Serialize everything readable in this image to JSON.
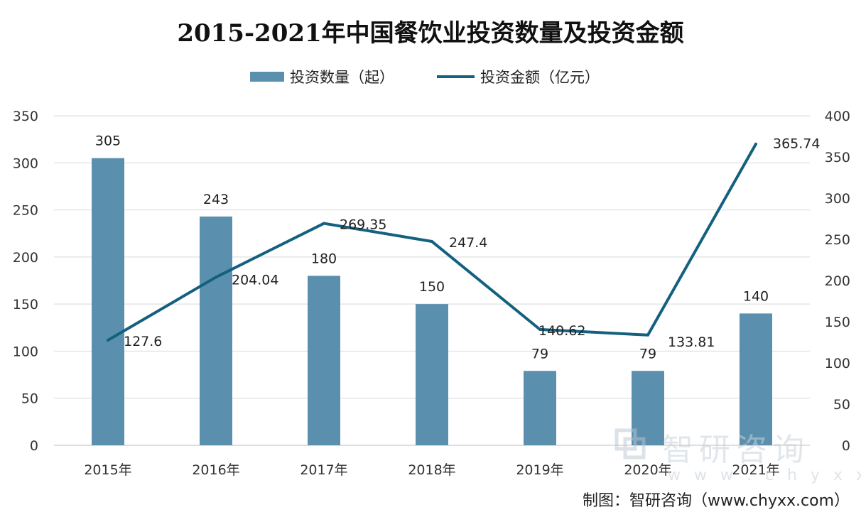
{
  "colors": {
    "bar": "#5b8fae",
    "line": "#13607f",
    "grid": "#d9d9d9",
    "watermark": "#c9d3dc"
  },
  "watermark": {
    "logo_icon": "chyxx-logo-icon",
    "name": "智研咨询",
    "url": "w w w . c h y x x . c o m"
  },
  "source": "制图：智研咨询（www.chyxx.com）",
  "chart_data": {
    "type": "bar",
    "title": "2015-2021年中国餐饮业投资数量及投资金额",
    "categories": [
      "2015年",
      "2016年",
      "2017年",
      "2018年",
      "2019年",
      "2020年",
      "2021年"
    ],
    "series": [
      {
        "name": "投资数量（起）",
        "type": "bar",
        "axis": "left",
        "values": [
          305,
          243,
          180,
          150,
          79,
          79,
          140
        ],
        "labels": [
          "305",
          "243",
          "180",
          "150",
          "79",
          "79",
          "140"
        ]
      },
      {
        "name": "投资金额（亿元）",
        "type": "line",
        "axis": "right",
        "values": [
          127.6,
          204.04,
          269.35,
          247.4,
          140.62,
          133.81,
          365.74
        ],
        "labels": [
          "127.6",
          "204.04",
          "269.35",
          "247.4",
          "140.62",
          "133.81",
          "365.74"
        ]
      }
    ],
    "y_left": {
      "min": 0,
      "max": 350,
      "ticks": [
        "0",
        "50",
        "100",
        "150",
        "200",
        "250",
        "300",
        "350"
      ]
    },
    "y_right": {
      "min": 0,
      "max": 400,
      "ticks": [
        "0",
        "50",
        "100",
        "150",
        "200",
        "250",
        "300",
        "350",
        "400"
      ]
    },
    "grid": true,
    "legend_position": "top-center"
  }
}
